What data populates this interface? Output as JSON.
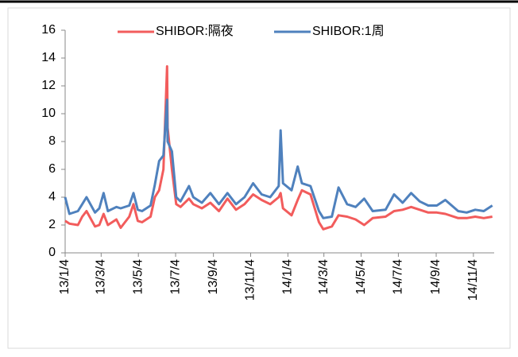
{
  "chart_data": {
    "type": "line",
    "x": [
      "13/1/4",
      "13/1/11",
      "13/1/25",
      "13/2/1",
      "13/2/8",
      "13/2/22",
      "13/3/1",
      "13/3/8",
      "13/3/15",
      "13/3/29",
      "13/4/5",
      "13/4/19",
      "13/4/26",
      "13/5/3",
      "13/5/10",
      "13/5/24",
      "13/5/31",
      "13/6/7",
      "13/6/14",
      "13/6/20",
      "13/6/21",
      "13/6/28",
      "13/7/5",
      "13/7/12",
      "13/7/26",
      "13/8/2",
      "13/8/16",
      "13/8/30",
      "13/9/13",
      "13/9/27",
      "13/10/11",
      "13/10/25",
      "13/11/8",
      "13/11/22",
      "13/12/6",
      "13/12/20",
      "13/12/23",
      "13/12/27",
      "14/1/10",
      "14/1/20",
      "14/1/27",
      "14/2/10",
      "14/2/24",
      "14/3/3",
      "14/3/17",
      "14/3/28",
      "14/4/11",
      "14/4/25",
      "14/5/9",
      "14/5/23",
      "14/6/13",
      "14/6/27",
      "14/7/11",
      "14/7/25",
      "14/8/8",
      "14/8/22",
      "14/9/5",
      "14/9/19",
      "14/10/10",
      "14/10/24",
      "14/11/7",
      "14/11/21",
      "14/12/5"
    ],
    "series": [
      {
        "name": "SHIBOR:隔夜",
        "color": "#f25c5c",
        "values": [
          2.3,
          2.1,
          2.0,
          2.6,
          3.0,
          1.9,
          2.0,
          2.8,
          2.0,
          2.4,
          1.8,
          2.6,
          3.5,
          2.3,
          2.2,
          2.6,
          4.0,
          4.5,
          6.0,
          13.4,
          9.0,
          6.0,
          3.5,
          3.3,
          3.9,
          3.5,
          3.2,
          3.6,
          3.0,
          3.9,
          3.1,
          3.5,
          4.2,
          3.8,
          3.5,
          4.0,
          4.3,
          3.2,
          2.7,
          3.8,
          4.5,
          4.2,
          2.2,
          1.7,
          1.9,
          2.7,
          2.6,
          2.4,
          2.0,
          2.5,
          2.6,
          3.0,
          3.1,
          3.3,
          3.1,
          2.9,
          2.9,
          2.8,
          2.5,
          2.5,
          2.6,
          2.5,
          2.6
        ]
      },
      {
        "name": "SHIBOR:1周",
        "color": "#4f81bd",
        "values": [
          4.0,
          2.8,
          3.0,
          3.5,
          4.0,
          2.9,
          3.2,
          4.3,
          3.0,
          3.3,
          3.2,
          3.4,
          4.3,
          3.1,
          3.0,
          3.4,
          4.9,
          6.6,
          7.0,
          11.0,
          8.0,
          7.3,
          4.0,
          3.7,
          4.8,
          4.0,
          3.6,
          4.3,
          3.5,
          4.3,
          3.5,
          4.0,
          5.0,
          4.2,
          4.0,
          4.8,
          8.8,
          5.0,
          4.5,
          6.2,
          5.0,
          4.8,
          3.0,
          2.5,
          2.6,
          4.7,
          3.5,
          3.3,
          3.9,
          3.0,
          3.1,
          4.2,
          3.6,
          4.3,
          3.7,
          3.4,
          3.4,
          3.8,
          3.0,
          2.9,
          3.1,
          3.0,
          3.4
        ]
      }
    ],
    "xlim": [
      "13/1/4",
      "14/12/8"
    ],
    "xticks": [
      "13/1/4",
      "13/3/4",
      "13/5/4",
      "13/7/4",
      "13/9/4",
      "13/11/4",
      "14/1/4",
      "14/3/4",
      "14/5/4",
      "14/7/4",
      "14/9/4",
      "14/11/4"
    ],
    "ylim": [
      0,
      16
    ],
    "yticks": [
      0,
      2,
      4,
      6,
      8,
      10,
      12,
      14,
      16
    ],
    "legend": "top"
  }
}
